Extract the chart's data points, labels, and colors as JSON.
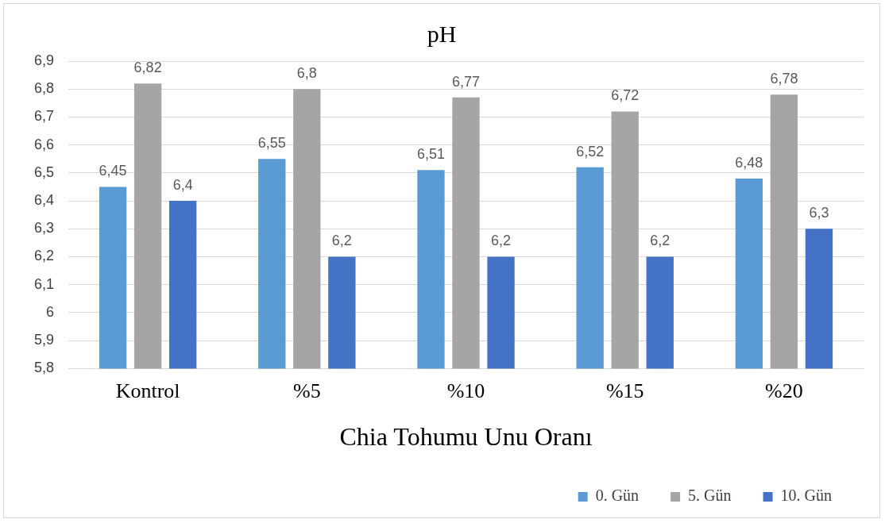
{
  "chart_data": {
    "type": "bar",
    "title": "pH",
    "xlabel": "Chia Tohumu Unu Oranı",
    "categories": [
      "Kontrol",
      "%5",
      "%10",
      "%15",
      "%20"
    ],
    "series": [
      {
        "name": "0. Gün",
        "color": "#5b9bd5",
        "values": [
          6.45,
          6.55,
          6.51,
          6.52,
          6.48
        ],
        "value_labels": [
          "6,45",
          "6,55",
          "6,51",
          "6,52",
          "6,48"
        ]
      },
      {
        "name": "5. Gün",
        "color": "#a5a5a5",
        "values": [
          6.82,
          6.8,
          6.77,
          6.72,
          6.78
        ],
        "value_labels": [
          "6,82",
          "6,8",
          "6,77",
          "6,72",
          "6,78"
        ]
      },
      {
        "name": "10. Gün",
        "color": "#4472c4",
        "values": [
          6.4,
          6.2,
          6.2,
          6.2,
          6.3
        ],
        "value_labels": [
          "6,4",
          "6,2",
          "6,2",
          "6,2",
          "6,3"
        ]
      }
    ],
    "ylim": [
      5.8,
      6.9
    ],
    "yticks": [
      {
        "value": 5.8,
        "label": "5,8"
      },
      {
        "value": 5.9,
        "label": "5,9"
      },
      6,
      {
        "value": 6.1,
        "label": "6,1"
      },
      {
        "value": 6.2,
        "label": "6,2"
      },
      {
        "value": 6.3,
        "label": "6,3"
      },
      {
        "value": 6.4,
        "label": "6,4"
      },
      {
        "value": 6.5,
        "label": "6,5"
      },
      {
        "value": 6.6,
        "label": "6,6"
      },
      {
        "value": 6.7,
        "label": "6,7"
      },
      {
        "value": 6.8,
        "label": "6,8"
      },
      {
        "value": 6.9,
        "label": "6,9"
      }
    ],
    "grid": "y",
    "legend": "bottom right"
  }
}
